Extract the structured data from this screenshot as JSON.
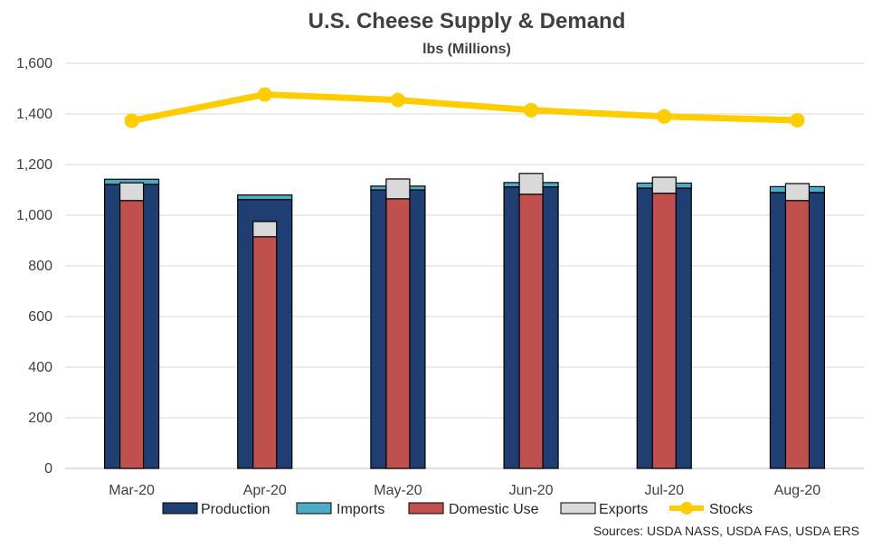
{
  "chart_data": {
    "type": "bar",
    "title": "U.S. Cheese Supply & Demand",
    "subtitle": "lbs (Millions)",
    "xlabel": "",
    "ylabel": "",
    "ylim": [
      0,
      1600
    ],
    "ytick_step": 200,
    "ytick_labels": [
      "0",
      "200",
      "400",
      "600",
      "800",
      "1,000",
      "1,200",
      "1,400",
      "1,600"
    ],
    "grid": true,
    "legend_position": "bottom",
    "categories": [
      "Mar-20",
      "Apr-20",
      "May-20",
      "Jun-20",
      "Jul-20",
      "Aug-20"
    ],
    "series": [
      {
        "name": "Production",
        "kind": "stacked-bar-wide",
        "color": "#1F3F73",
        "values": [
          1122,
          1062,
          1100,
          1112,
          1107,
          1090
        ]
      },
      {
        "name": "Imports",
        "kind": "stacked-bar-wide",
        "color": "#4BACC6",
        "values": [
          20,
          18,
          15,
          17,
          20,
          23
        ]
      },
      {
        "name": "Domestic Use",
        "kind": "stacked-bar-narrow",
        "color": "#C0504D",
        "values": [
          1058,
          915,
          1065,
          1083,
          1087,
          1058
        ]
      },
      {
        "name": "Exports",
        "kind": "stacked-bar-narrow",
        "color": "#D9D9D9",
        "values": [
          70,
          60,
          78,
          82,
          63,
          67
        ]
      },
      {
        "name": "Stocks",
        "kind": "line",
        "color": "#FFCC00",
        "values": [
          1373,
          1477,
          1455,
          1415,
          1390,
          1375
        ]
      }
    ],
    "source_note": "Sources: USDA NASS, USDA FAS, USDA ERS"
  }
}
